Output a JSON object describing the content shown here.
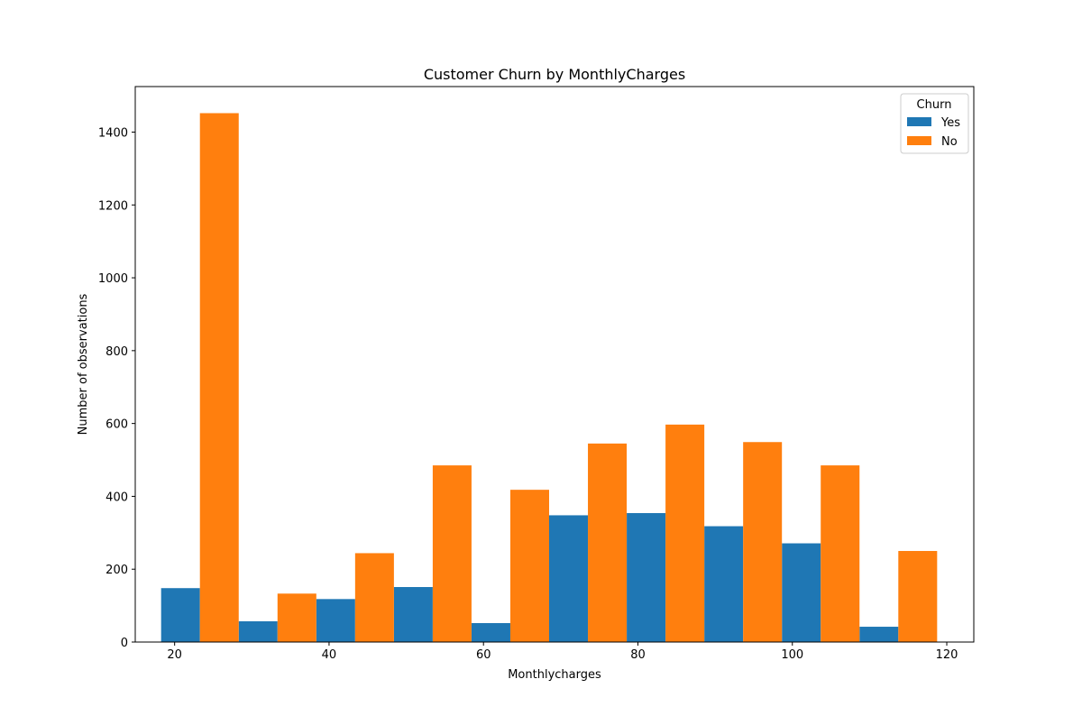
{
  "chart_data": {
    "type": "bar",
    "title": "Customer Churn by MonthlyCharges",
    "xlabel": "Monthlycharges",
    "ylabel": "Number of observations",
    "xlim": [
      14.9,
      123.5
    ],
    "ylim": [
      0,
      1525
    ],
    "xticks": [
      20,
      40,
      60,
      80,
      100,
      120
    ],
    "yticks": [
      0,
      200,
      400,
      600,
      800,
      1000,
      1200,
      1400
    ],
    "bin_edges": [
      18.25,
      28.3,
      38.35,
      48.4,
      58.45,
      68.5,
      78.55,
      88.6,
      98.65,
      108.7,
      118.75
    ],
    "legend": {
      "title": "Churn",
      "position": "top-right"
    },
    "series": [
      {
        "name": "Yes",
        "color": "#1f77b4",
        "values": [
          148,
          57,
          118,
          151,
          52,
          348,
          354,
          318,
          271,
          42
        ]
      },
      {
        "name": "No",
        "color": "#ff7f0e",
        "values": [
          1452,
          133,
          244,
          485,
          418,
          545,
          597,
          549,
          485,
          250
        ]
      }
    ]
  }
}
